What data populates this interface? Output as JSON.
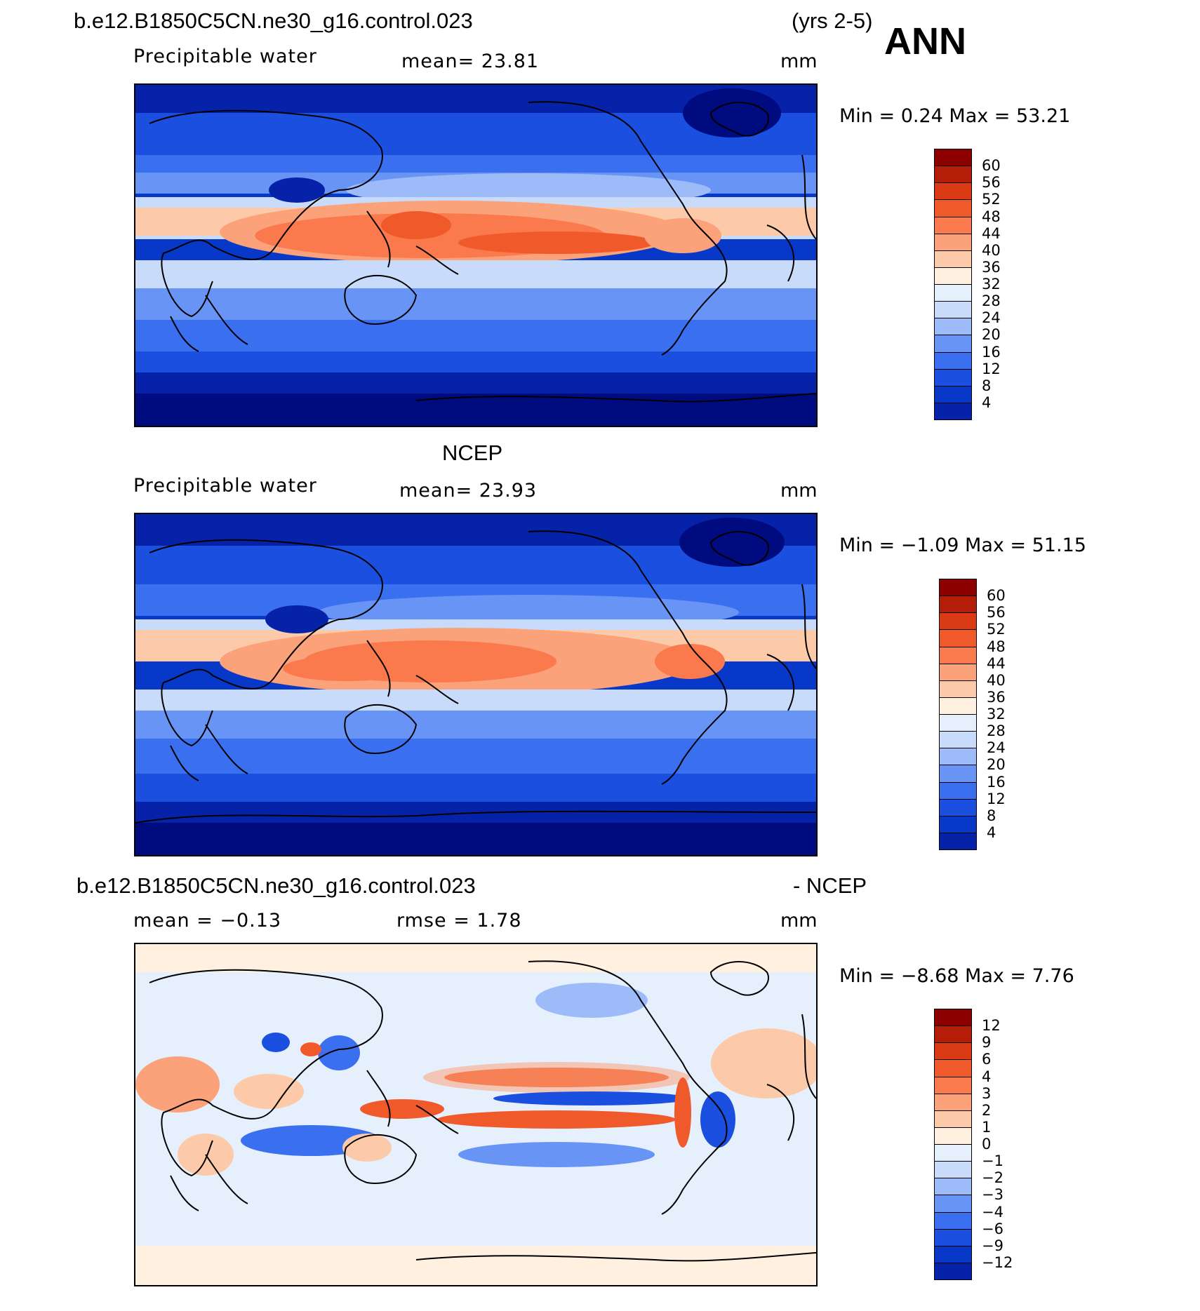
{
  "header": {
    "case_name": "b.e12.B1850C5CN.ne30_g16.control.023",
    "years": "(yrs 2-5)",
    "season": "ANN"
  },
  "panels": [
    {
      "id": "model",
      "title": "",
      "variable": "Precipitable water",
      "stat_text": "mean=   23.81",
      "units": "mm",
      "minmax_text": "Min =    0.24  Max =   53.21",
      "colors": [
        "#000b80",
        "#0522a8",
        "#0838c8",
        "#1a4fe0",
        "#3a6ff0",
        "#6894f5",
        "#9dbbf8",
        "#c9dbfa",
        "#e6f0fd",
        "#fff0e0",
        "#fccaa8",
        "#fba27a",
        "#fa7a4e",
        "#f05a2a",
        "#da3a14",
        "#b41e08",
        "#8c0000"
      ],
      "ticks": [
        "60",
        "56",
        "52",
        "48",
        "44",
        "40",
        "36",
        "32",
        "28",
        "24",
        "20",
        "16",
        "12",
        "8",
        "4"
      ]
    },
    {
      "id": "obs",
      "title": "NCEP",
      "variable": "Precipitable water",
      "stat_text": "mean=   23.93",
      "units": "mm",
      "minmax_text": "Min =   −1.09  Max =   51.15",
      "colors": [
        "#000b80",
        "#0522a8",
        "#0838c8",
        "#1a4fe0",
        "#3a6ff0",
        "#6894f5",
        "#9dbbf8",
        "#c9dbfa",
        "#e6f0fd",
        "#fff0e0",
        "#fccaa8",
        "#fba27a",
        "#fa7a4e",
        "#f05a2a",
        "#da3a14",
        "#b41e08",
        "#8c0000"
      ],
      "ticks": [
        "60",
        "56",
        "52",
        "48",
        "44",
        "40",
        "36",
        "32",
        "28",
        "24",
        "20",
        "16",
        "12",
        "8",
        "4"
      ]
    },
    {
      "id": "diff",
      "title_left": "b.e12.B1850C5CN.ne30_g16.control.023",
      "title_right": "- NCEP",
      "stat_left": "mean =    −0.13",
      "stat_mid": "rmse =     1.78",
      "units": "mm",
      "minmax_text": "Min =   −8.68  Max =     7.76",
      "colors": [
        "#000b80",
        "#0522a8",
        "#0838c8",
        "#1a4fe0",
        "#3a6ff0",
        "#6894f5",
        "#9dbbf8",
        "#c9dbfa",
        "#e6f0fd",
        "#fff0e0",
        "#fccaa8",
        "#fba27a",
        "#fa7a4e",
        "#f05a2a",
        "#da3a14",
        "#b41e08",
        "#8c0000"
      ],
      "ticks": [
        "12",
        "9",
        "6",
        "4",
        "3",
        "2",
        "1",
        "0",
        "−1",
        "−2",
        "−3",
        "−4",
        "−6",
        "−9",
        "−12"
      ]
    }
  ]
}
